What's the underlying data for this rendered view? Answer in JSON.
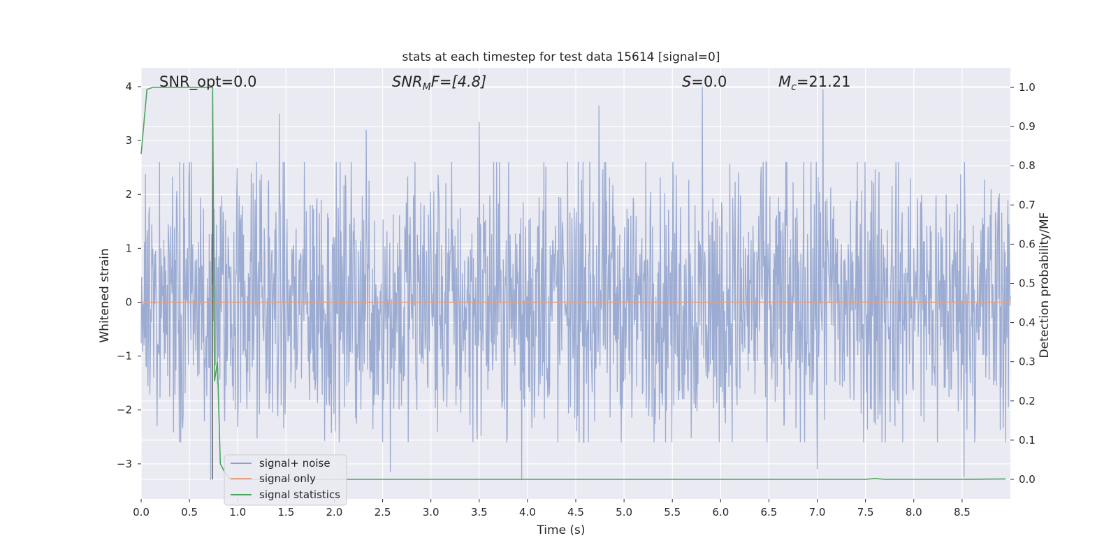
{
  "chart_data": {
    "type": "line",
    "title": "stats at each timestep for test data 15614 [signal=0]",
    "xlabel": "Time (s)",
    "ylabel_left": "Whitened strain",
    "ylabel_right": "Detection probability/MF",
    "xlim": [
      0.0,
      9.0
    ],
    "ylim_left": [
      -3.65,
      4.35
    ],
    "ylim_right": [
      -0.05,
      1.05
    ],
    "x_ticks": [
      "0.0",
      "0.5",
      "1.0",
      "1.5",
      "2.0",
      "2.5",
      "3.0",
      "3.5",
      "4.0",
      "4.5",
      "5.0",
      "5.5",
      "6.0",
      "6.5",
      "7.0",
      "7.5",
      "8.0",
      "8.5"
    ],
    "y_ticks_left": [
      "−3",
      "−2",
      "−1",
      "0",
      "1",
      "2",
      "3",
      "4"
    ],
    "y_ticks_right": [
      "0.0",
      "0.1",
      "0.2",
      "0.3",
      "0.4",
      "0.5",
      "0.6",
      "0.7",
      "0.8",
      "0.9",
      "1.0"
    ],
    "grid": true,
    "background": "#eaeaf2",
    "legend_placement": "lower-left",
    "annotations": {
      "snr_opt": "SNR_opt=0.0",
      "snr_mf_base": "SNR",
      "snr_mf_sub": "M",
      "snr_mf_rest": "F=[4.8]",
      "s_base": "S",
      "s_rest": "=0.0",
      "mc_base": "M",
      "mc_sub": "c",
      "mc_rest": "=21.21"
    },
    "series": [
      {
        "name": "signal+ noise",
        "color": "#8da0cb",
        "axis": "left",
        "description_type": "noise",
        "x_range": [
          0.0,
          9.0
        ],
        "envelope": [
          -2.2,
          2.4
        ],
        "peaks": [
          [
            1.43,
            3.5
          ],
          [
            2.33,
            3.2
          ],
          [
            3.5,
            3.35
          ],
          [
            3.94,
            3.38
          ],
          [
            4.74,
            3.65
          ],
          [
            5.81,
            4.0
          ],
          [
            7.06,
            3.95
          ],
          [
            0.72,
            -3.3
          ],
          [
            3.94,
            -3.3
          ],
          [
            8.52,
            -3.25
          ],
          [
            7.0,
            -3.1
          ],
          [
            2.58,
            -3.15
          ]
        ]
      },
      {
        "name": "signal only",
        "color": "#e5a07f",
        "axis": "left",
        "x": [
          0.0,
          9.0
        ],
        "y": [
          0.0,
          0.0
        ]
      },
      {
        "name": "signal statistics",
        "color": "#4aa55e",
        "axis": "right",
        "x": [
          0.0,
          0.06,
          0.12,
          0.2,
          0.4,
          0.6,
          0.74,
          0.76,
          0.79,
          0.82,
          0.86,
          0.92,
          1.2,
          2.0,
          3.0,
          4.0,
          5.0,
          6.0,
          7.0,
          7.4,
          7.5,
          7.6,
          7.7,
          8.0,
          8.5,
          8.95
        ],
        "y": [
          0.83,
          0.995,
          1.0,
          1.0,
          1.0,
          1.0,
          1.0,
          0.25,
          0.3,
          0.04,
          0.02,
          0.0,
          0.0,
          0.0,
          0.0,
          0.0,
          0.0,
          0.0,
          0.0,
          0.0,
          0.0,
          0.002,
          0.0,
          0.0,
          0.0,
          0.001
        ]
      }
    ],
    "markers": [
      {
        "name": "black-vline",
        "color": "#555555",
        "x": 0.74,
        "y_range_right": [
          0.0,
          1.0
        ]
      }
    ]
  }
}
